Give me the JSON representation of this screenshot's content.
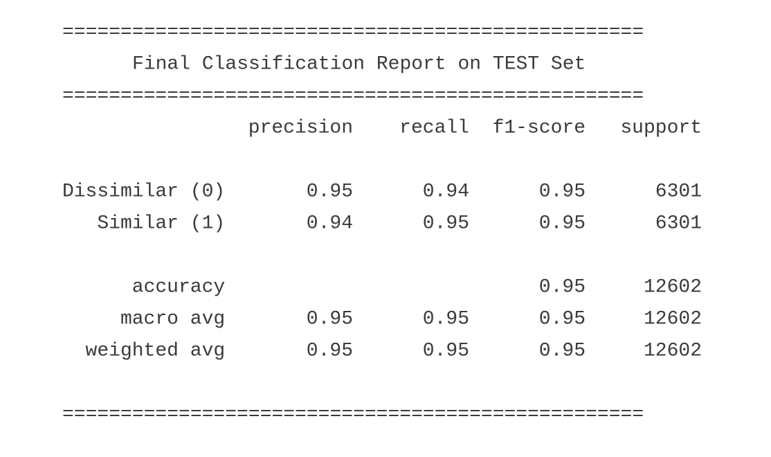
{
  "separators": [
    "==================================================",
    "==================================================",
    "=================================================="
  ],
  "title": "Final Classification Report on TEST Set",
  "report": {
    "columns": [
      "precision",
      "recall",
      "f1-score",
      "support"
    ],
    "rows": [
      {
        "label": "Dissimilar (0)",
        "precision": 0.95,
        "recall": 0.94,
        "f1-score": 0.95,
        "support": 6301
      },
      {
        "label": "Similar (1)",
        "precision": 0.94,
        "recall": 0.95,
        "f1-score": 0.95,
        "support": 6301
      },
      {
        "label": "accuracy",
        "f1-score": 0.95,
        "support": 12602
      },
      {
        "label": "macro avg",
        "precision": 0.95,
        "recall": 0.95,
        "f1-score": 0.95,
        "support": 12602
      },
      {
        "label": "weighted avg",
        "precision": 0.95,
        "recall": 0.95,
        "f1-score": 0.95,
        "support": 12602
      }
    ]
  }
}
